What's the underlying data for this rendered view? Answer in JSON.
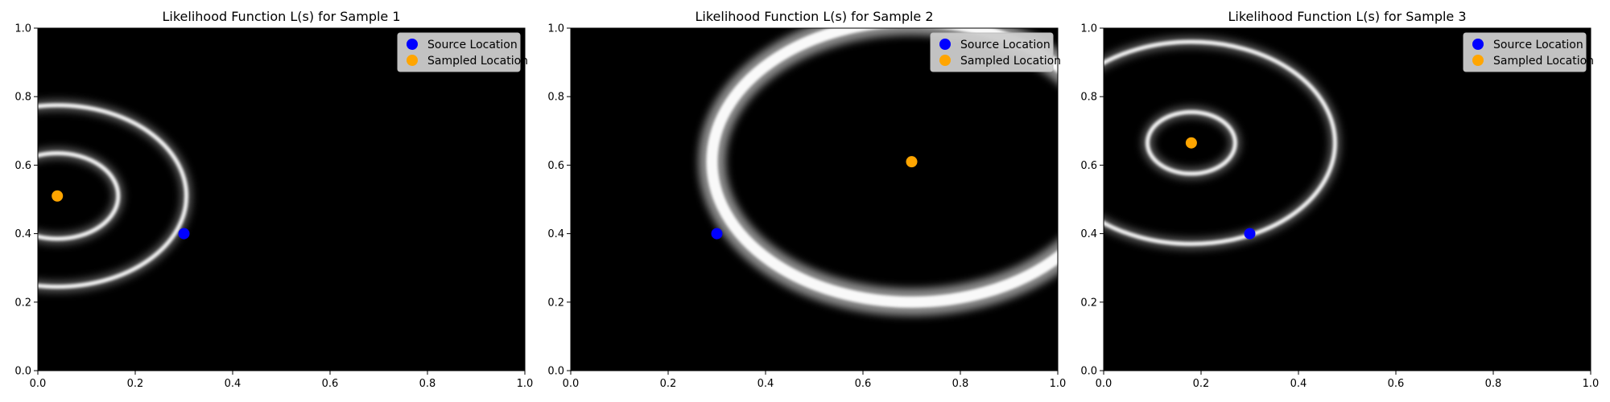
{
  "colors": {
    "source": "#0000ff",
    "sampled": "#ffa500",
    "background": "#000000",
    "ring": "#ffffff",
    "legend_frame": "#cccccc"
  },
  "chart_data": [
    {
      "type": "heatmap",
      "title": "Likelihood Function L(s) for Sample 1",
      "xlabel": "",
      "ylabel": "",
      "xlim": [
        0,
        1
      ],
      "ylim": [
        0,
        1
      ],
      "colormap": "gray",
      "xticks": [
        "0.0",
        "0.2",
        "0.4",
        "0.6",
        "0.8",
        "1.0"
      ],
      "yticks": [
        "0.0",
        "0.2",
        "0.4",
        "0.6",
        "0.8",
        "1.0"
      ],
      "legend": {
        "placement": "top-right",
        "entries": [
          {
            "label": "Source Location",
            "color": "#0000ff"
          },
          {
            "label": "Sampled Location",
            "color": "#ffa500"
          }
        ]
      },
      "source": {
        "x": 0.3,
        "y": 0.4
      },
      "sampled": {
        "x": 0.04,
        "y": 0.51
      },
      "rings": [
        {
          "cx": 0.04,
          "cy": 0.51,
          "r": 0.125
        },
        {
          "cx": 0.04,
          "cy": 0.51,
          "r": 0.265
        }
      ]
    },
    {
      "type": "heatmap",
      "title": "Likelihood Function L(s) for Sample 2",
      "xlabel": "",
      "ylabel": "",
      "xlim": [
        0,
        1
      ],
      "ylim": [
        0,
        1
      ],
      "colormap": "gray",
      "xticks": [
        "0.0",
        "0.2",
        "0.4",
        "0.6",
        "0.8",
        "1.0"
      ],
      "yticks": [
        "0.0",
        "0.2",
        "0.4",
        "0.6",
        "0.8",
        "1.0"
      ],
      "legend": {
        "placement": "top-right",
        "entries": [
          {
            "label": "Source Location",
            "color": "#0000ff"
          },
          {
            "label": "Sampled Location",
            "color": "#ffa500"
          }
        ]
      },
      "source": {
        "x": 0.3,
        "y": 0.4
      },
      "sampled": {
        "x": 0.7,
        "y": 0.61
      },
      "rings": [
        {
          "cx": 0.7,
          "cy": 0.61,
          "r": 0.41
        }
      ]
    },
    {
      "type": "heatmap",
      "title": "Likelihood Function L(s) for Sample 3",
      "xlabel": "",
      "ylabel": "",
      "xlim": [
        0,
        1
      ],
      "ylim": [
        0,
        1
      ],
      "colormap": "gray",
      "xticks": [
        "0.0",
        "0.2",
        "0.4",
        "0.6",
        "0.8",
        "1.0"
      ],
      "yticks": [
        "0.0",
        "0.2",
        "0.4",
        "0.6",
        "0.8",
        "1.0"
      ],
      "legend": {
        "placement": "top-right",
        "entries": [
          {
            "label": "Source Location",
            "color": "#0000ff"
          },
          {
            "label": "Sampled Location",
            "color": "#ffa500"
          }
        ]
      },
      "source": {
        "x": 0.3,
        "y": 0.4
      },
      "sampled": {
        "x": 0.18,
        "y": 0.665
      },
      "rings": [
        {
          "cx": 0.18,
          "cy": 0.665,
          "r": 0.09
        },
        {
          "cx": 0.18,
          "cy": 0.665,
          "r": 0.295
        }
      ]
    }
  ]
}
